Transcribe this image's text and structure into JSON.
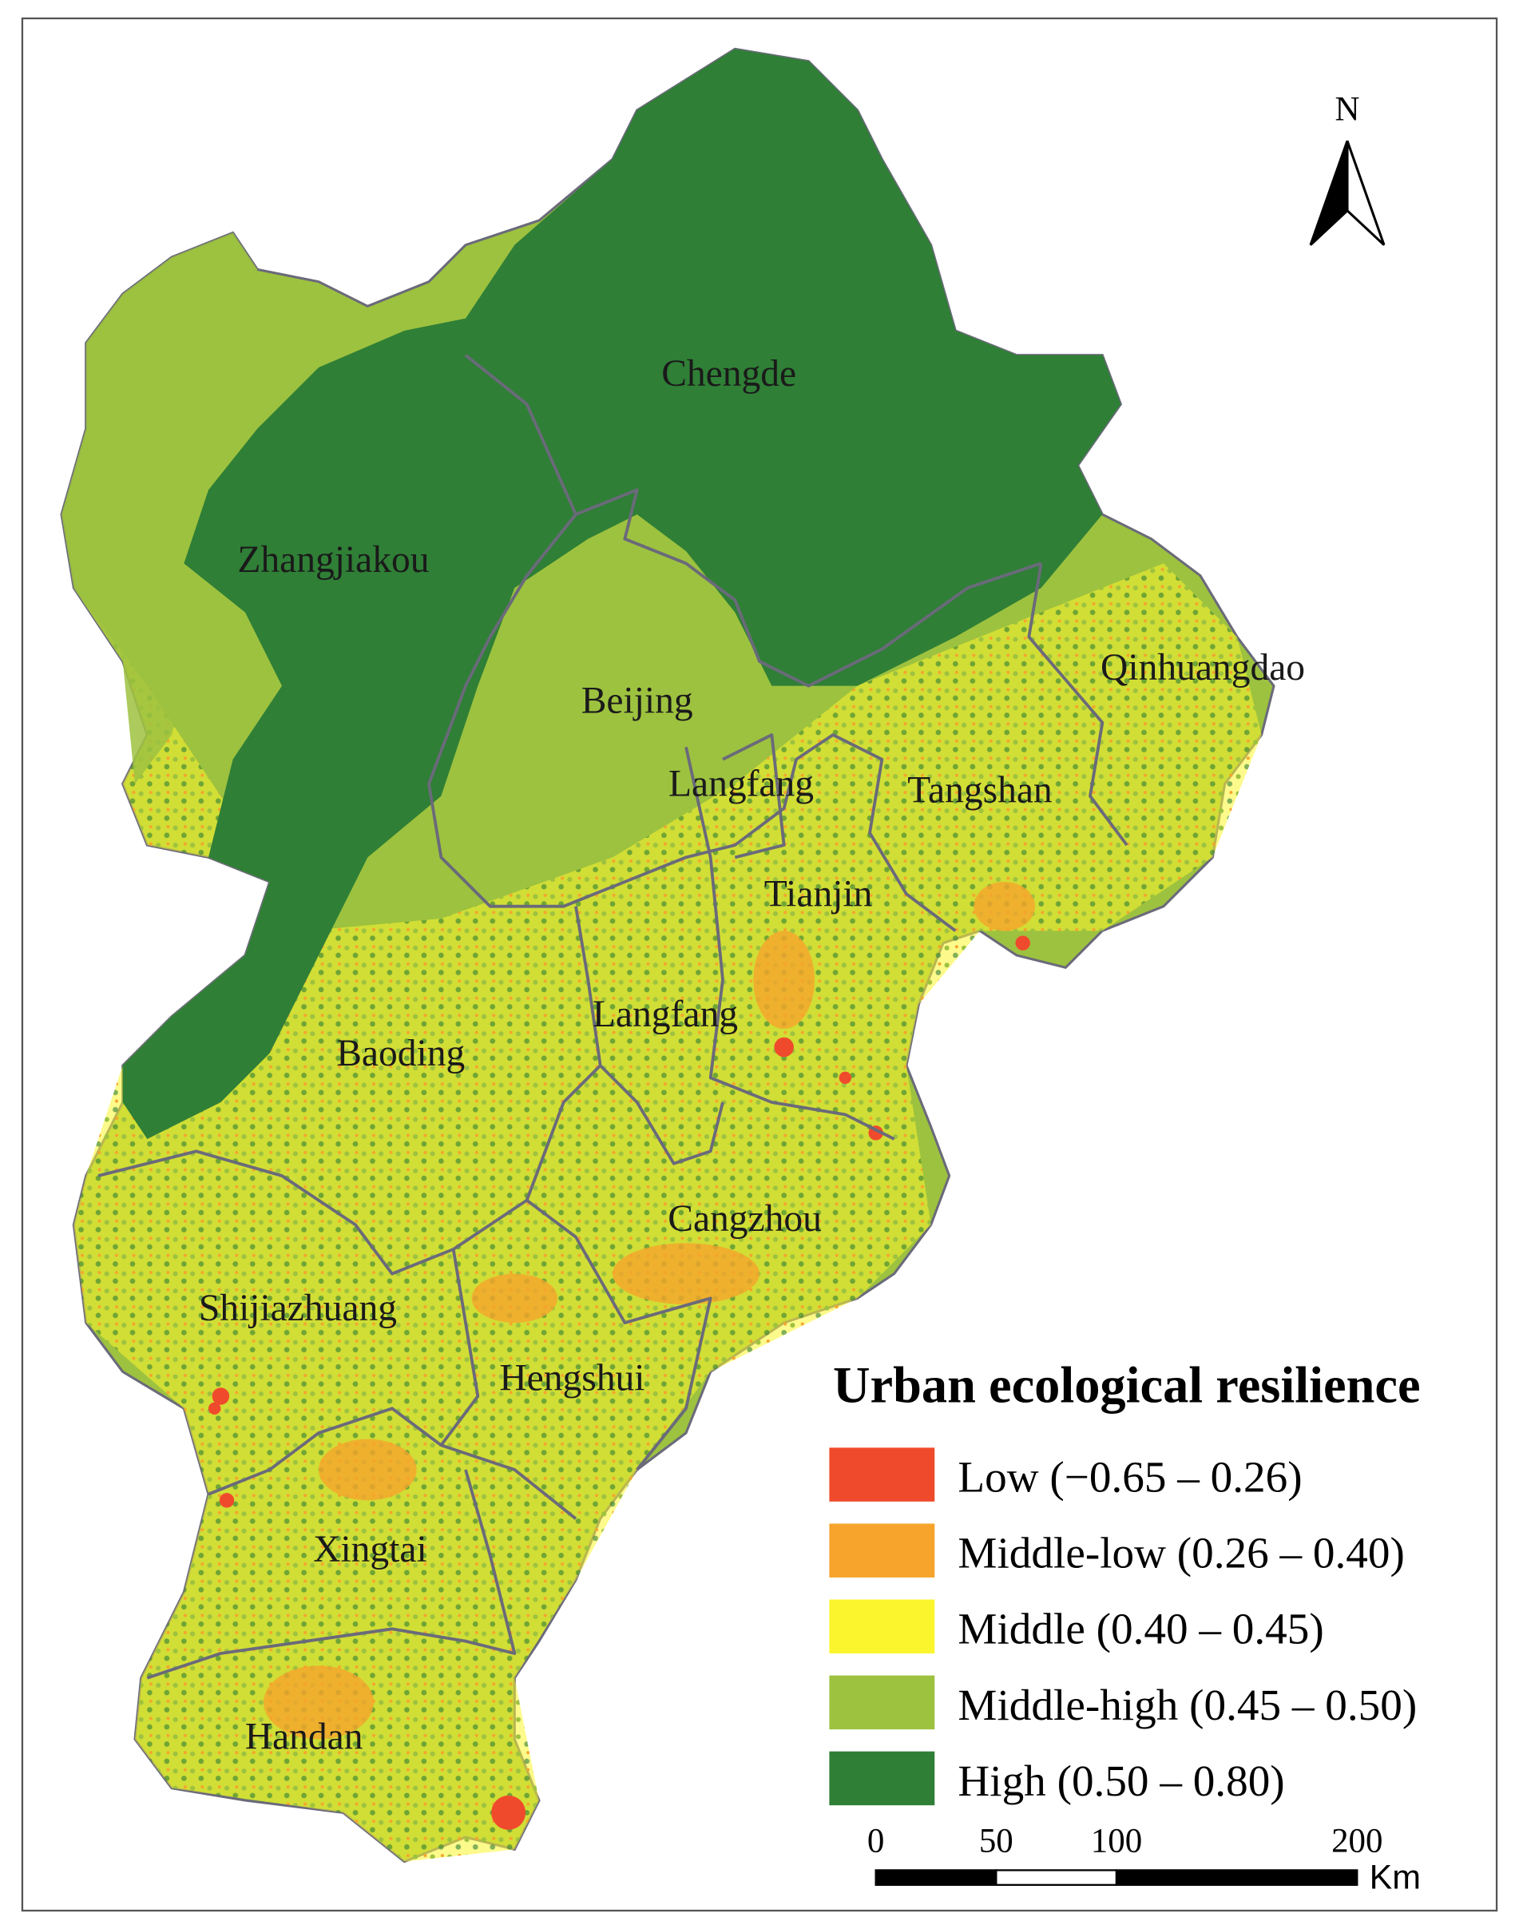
{
  "north_label": "N",
  "cities": [
    "Chengde",
    "Zhangjiakou",
    "Qinhuangdao",
    "Beijing",
    "Langfang",
    "Tangshan",
    "Tianjin",
    "Langfang",
    "Baoding",
    "Cangzhou",
    "Shijiazhuang",
    "Hengshui",
    "Xingtai",
    "Handan"
  ],
  "legend": {
    "title": "Urban ecological resilience",
    "items": [
      {
        "label": "Low (−0.65 – 0.26)",
        "color": "#f04a2c"
      },
      {
        "label": "Middle-low (0.26 – 0.40)",
        "color": "#f6a42c"
      },
      {
        "label": "Middle (0.40 – 0.45)",
        "color": "#fbf52e"
      },
      {
        "label": "Middle-high (0.45 – 0.50)",
        "color": "#9dc23f"
      },
      {
        "label": "High (0.50 – 0.80)",
        "color": "#2f7f36"
      }
    ]
  },
  "scale_bar": {
    "ticks": [
      0,
      50,
      100,
      200
    ],
    "unit": "Km"
  }
}
